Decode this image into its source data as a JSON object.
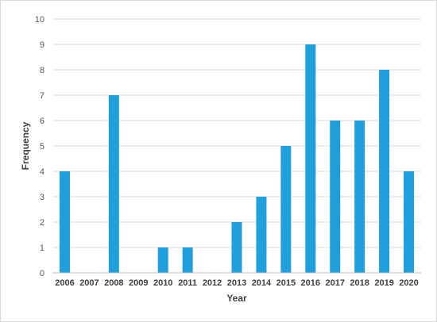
{
  "chart_data": {
    "type": "bar",
    "title": "",
    "xlabel": "Year",
    "ylabel": "Frequency",
    "categories": [
      "2006",
      "2007",
      "2008",
      "2009",
      "2010",
      "2011",
      "2012",
      "2013",
      "2014",
      "2015",
      "2016",
      "2017",
      "2018",
      "2019",
      "2020"
    ],
    "values": [
      4,
      0,
      7,
      0,
      1,
      1,
      0,
      2,
      3,
      5,
      9,
      6,
      6,
      8,
      4
    ],
    "ylim": [
      0,
      10
    ],
    "yticks": [
      "0",
      "1",
      "2",
      "3",
      "4",
      "5",
      "6",
      "7",
      "8",
      "9",
      "10"
    ],
    "grid": true,
    "legend": "none",
    "bar_color": "#1f9fdb"
  }
}
